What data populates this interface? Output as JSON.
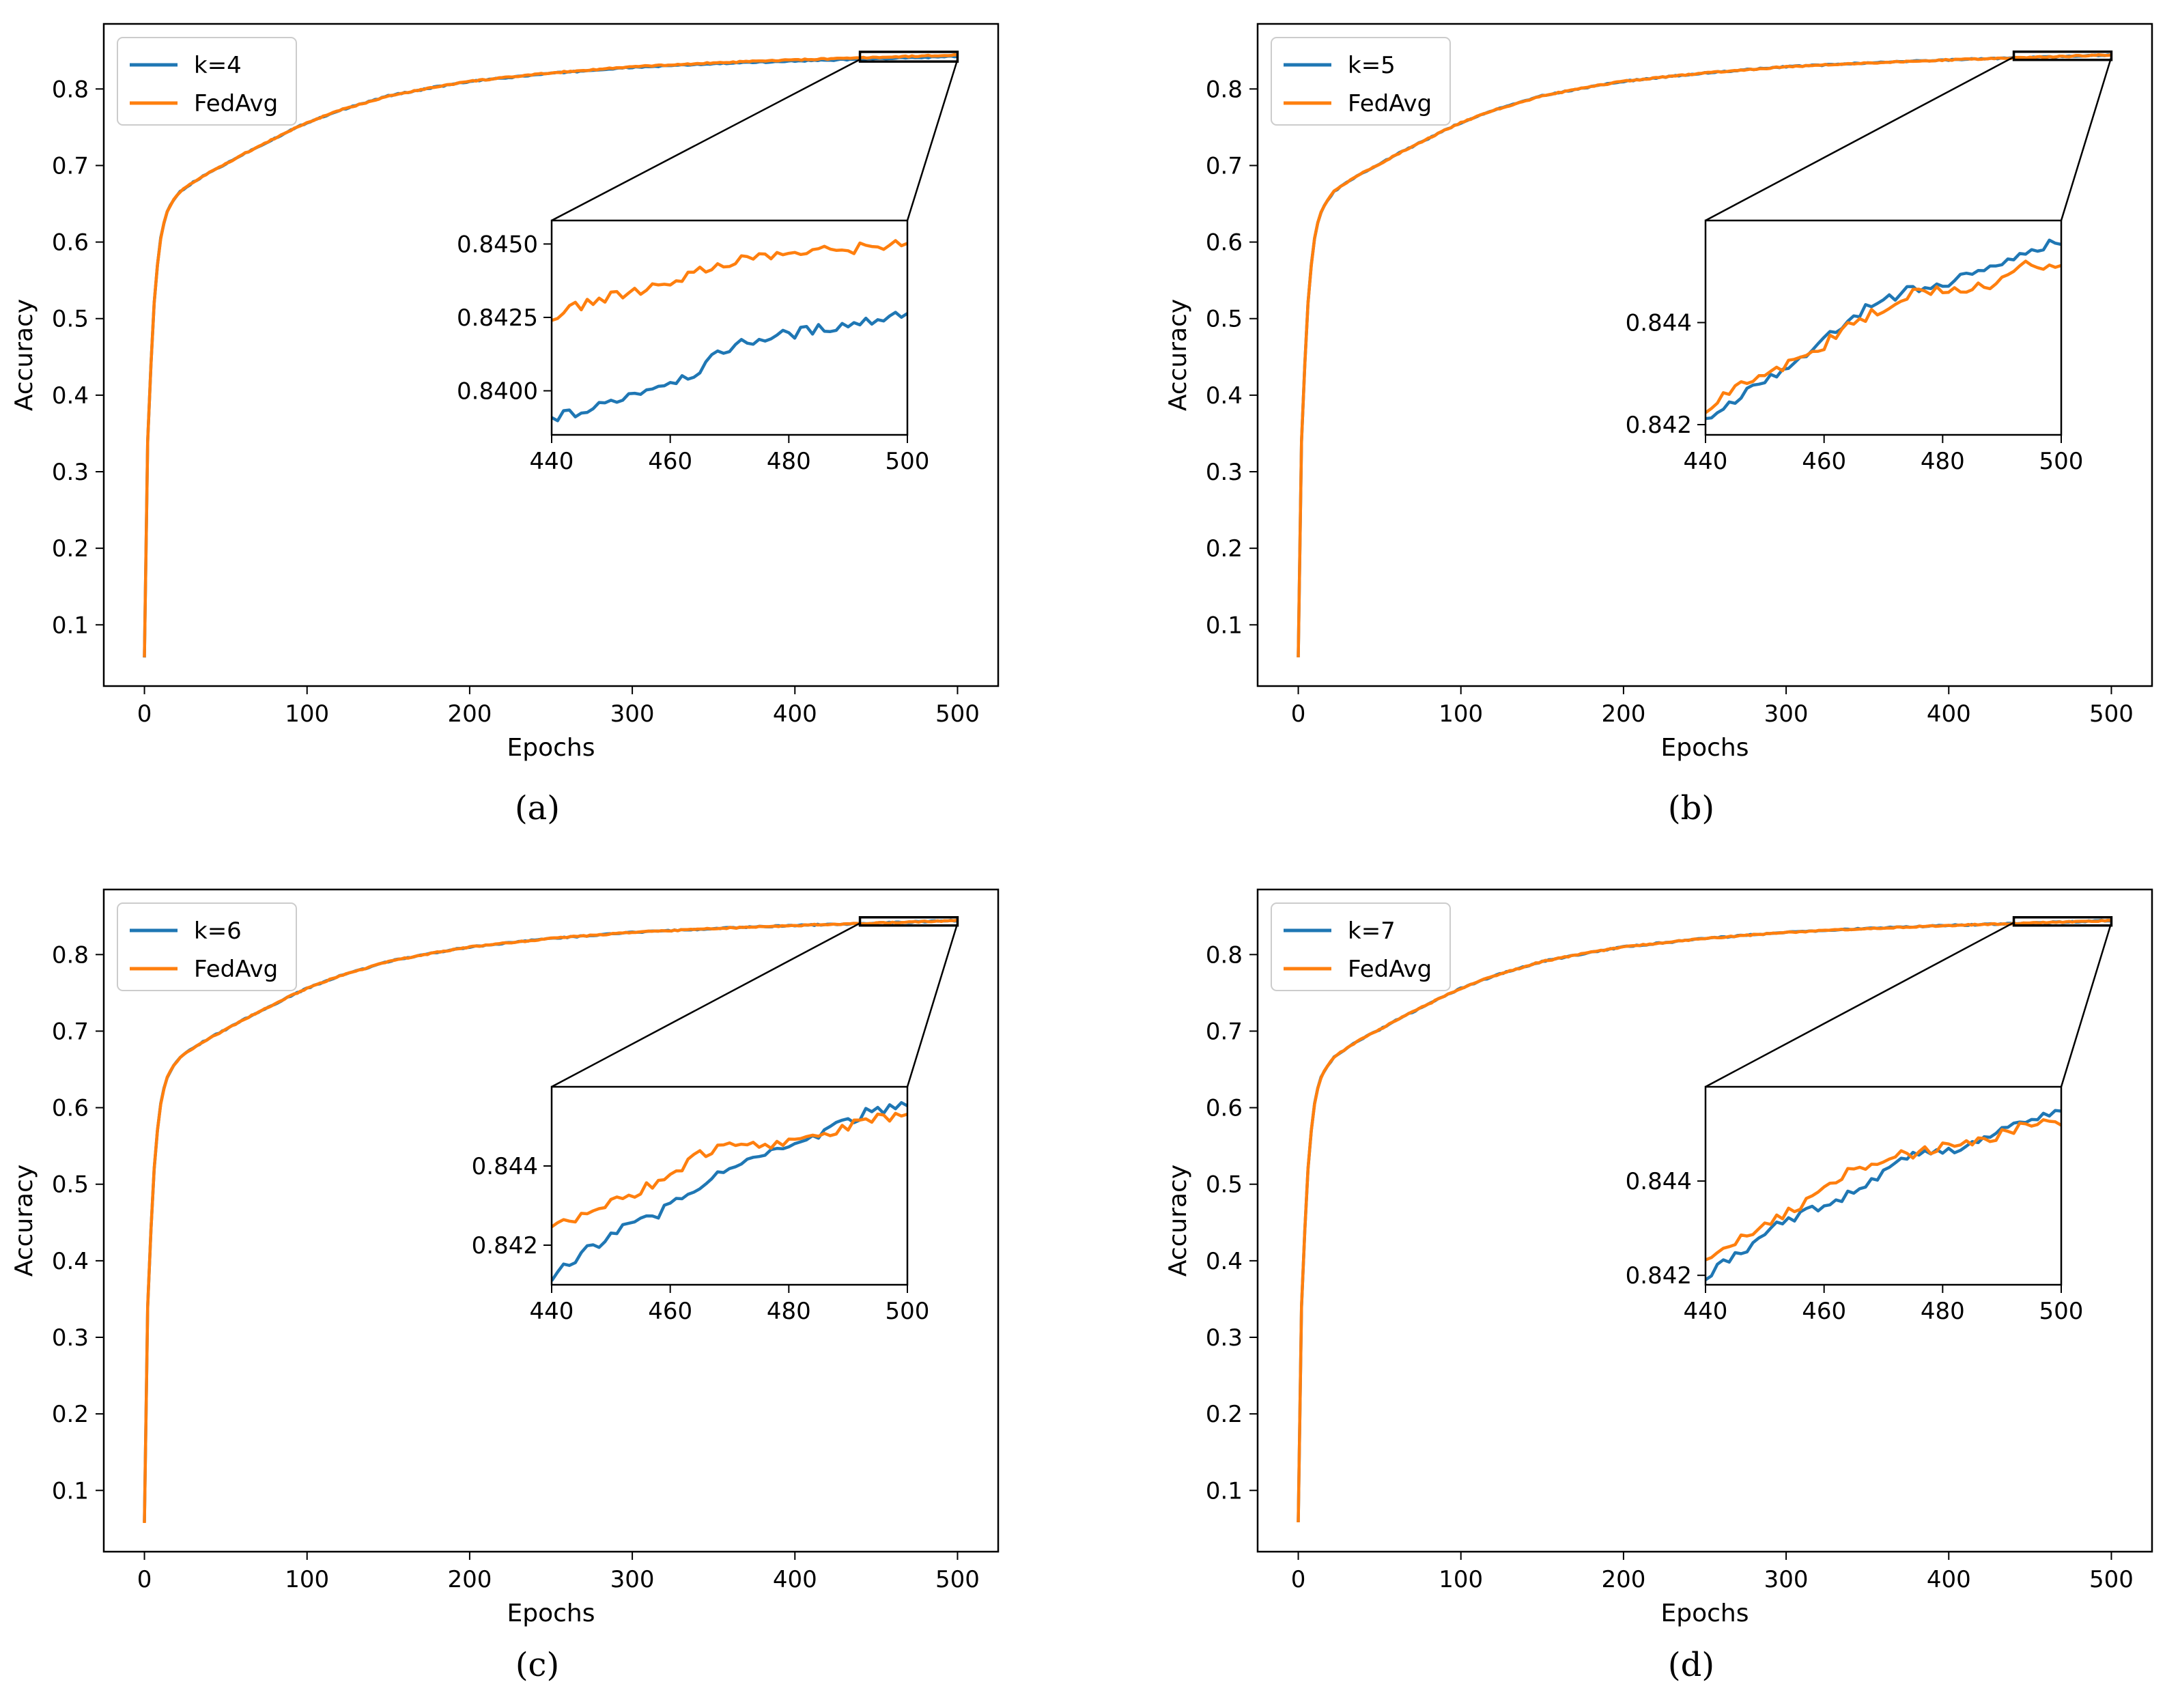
{
  "figure": {
    "series_colors": {
      "k": "#1f77b4",
      "fedavg": "#ff7f0e"
    }
  },
  "chart_data": [
    {
      "type": "line",
      "panel": "a",
      "caption": "(a)",
      "xlabel": "Epochs",
      "ylabel": "Accuracy",
      "xlim": [
        -25,
        525
      ],
      "ylim": [
        0.02,
        0.885
      ],
      "xticks": [
        0,
        100,
        200,
        300,
        400,
        500
      ],
      "yticks": [
        0.1,
        0.2,
        0.3,
        0.4,
        0.5,
        0.6,
        0.7,
        0.8
      ],
      "legend": [
        "k=4",
        "FedAvg"
      ],
      "legend_position": "top-left",
      "curve_points": [
        [
          0,
          0.058
        ],
        [
          1,
          0.23
        ],
        [
          2,
          0.34
        ],
        [
          4,
          0.44
        ],
        [
          6,
          0.52
        ],
        [
          8,
          0.57
        ],
        [
          10,
          0.605
        ],
        [
          13,
          0.635
        ],
        [
          17,
          0.652
        ],
        [
          22,
          0.666
        ],
        [
          30,
          0.678
        ],
        [
          40,
          0.691
        ],
        [
          50,
          0.702
        ],
        [
          60,
          0.714
        ],
        [
          75,
          0.73
        ],
        [
          90,
          0.746
        ],
        [
          100,
          0.756
        ],
        [
          120,
          0.772
        ],
        [
          150,
          0.791
        ],
        [
          180,
          0.803
        ],
        [
          200,
          0.81
        ],
        [
          250,
          0.821
        ],
        [
          300,
          0.829
        ],
        [
          350,
          0.834
        ],
        [
          400,
          0.838
        ],
        [
          440,
          0.8405
        ],
        [
          500,
          0.8445
        ]
      ],
      "series": [
        {
          "name": "k=4",
          "final_gap": -0.002
        },
        {
          "name": "FedAvg",
          "final_gap": 0
        }
      ],
      "inset": {
        "xlim": [
          440,
          500
        ],
        "ylim": [
          0.8385,
          0.8458
        ],
        "xticks": [
          440,
          460,
          480,
          500
        ],
        "yticks": [
          0.84,
          0.8425,
          0.845
        ],
        "ytick_labels": [
          "0.8400",
          "0.8425",
          "0.8450"
        ],
        "series": [
          {
            "name": "k=4",
            "x": [
              440,
              446,
              452,
              458,
              464,
              470,
              476,
              482,
              488,
              494,
              500
            ],
            "y": [
              0.8391,
              0.8393,
              0.8398,
              0.8402,
              0.8406,
              0.8415,
              0.8418,
              0.842,
              0.8422,
              0.8424,
              0.8427
            ]
          },
          {
            "name": "FedAvg",
            "x": [
              440,
              446,
              452,
              458,
              464,
              470,
              476,
              482,
              488,
              494,
              500
            ],
            "y": [
              0.8425,
              0.843,
              0.8433,
              0.8436,
              0.844,
              0.8444,
              0.8446,
              0.8447,
              0.8448,
              0.8449,
              0.8451
            ]
          }
        ]
      }
    },
    {
      "type": "line",
      "panel": "b",
      "caption": "(b)",
      "xlabel": "Epochs",
      "ylabel": "Accuracy",
      "xlim": [
        -25,
        525
      ],
      "ylim": [
        0.02,
        0.885
      ],
      "xticks": [
        0,
        100,
        200,
        300,
        400,
        500
      ],
      "yticks": [
        0.1,
        0.2,
        0.3,
        0.4,
        0.5,
        0.6,
        0.7,
        0.8
      ],
      "legend": [
        "k=5",
        "FedAvg"
      ],
      "legend_position": "top-left",
      "curve_points": [
        [
          0,
          0.058
        ],
        [
          1,
          0.23
        ],
        [
          2,
          0.34
        ],
        [
          4,
          0.44
        ],
        [
          6,
          0.52
        ],
        [
          8,
          0.57
        ],
        [
          10,
          0.605
        ],
        [
          13,
          0.635
        ],
        [
          17,
          0.652
        ],
        [
          22,
          0.666
        ],
        [
          30,
          0.678
        ],
        [
          40,
          0.691
        ],
        [
          50,
          0.702
        ],
        [
          60,
          0.714
        ],
        [
          75,
          0.73
        ],
        [
          90,
          0.746
        ],
        [
          100,
          0.756
        ],
        [
          120,
          0.772
        ],
        [
          150,
          0.791
        ],
        [
          180,
          0.803
        ],
        [
          200,
          0.81
        ],
        [
          250,
          0.821
        ],
        [
          300,
          0.829
        ],
        [
          350,
          0.834
        ],
        [
          400,
          0.838
        ],
        [
          440,
          0.8405
        ],
        [
          500,
          0.8445
        ]
      ],
      "series": [
        {
          "name": "k=5",
          "final_gap": 0
        },
        {
          "name": "FedAvg",
          "final_gap": 0
        }
      ],
      "inset": {
        "xlim": [
          440,
          500
        ],
        "ylim": [
          0.8418,
          0.846
        ],
        "xticks": [
          440,
          460,
          480,
          500
        ],
        "yticks": [
          0.842,
          0.844
        ],
        "ytick_labels": [
          "0.842",
          "0.844"
        ],
        "series": [
          {
            "name": "k=5",
            "x": [
              440,
              446,
              452,
              458,
              464,
              470,
              476,
              482,
              488,
              494,
              500
            ],
            "y": [
              0.8421,
              0.8426,
              0.843,
              0.8434,
              0.8441,
              0.8444,
              0.8447,
              0.8448,
              0.8451,
              0.8454,
              0.8456
            ]
          },
          {
            "name": "FedAvg",
            "x": [
              440,
              446,
              452,
              458,
              464,
              470,
              476,
              482,
              488,
              494,
              500
            ],
            "y": [
              0.8423,
              0.8428,
              0.8431,
              0.8434,
              0.8439,
              0.8443,
              0.8446,
              0.8447,
              0.8447,
              0.8451,
              0.8452
            ]
          }
        ]
      }
    },
    {
      "type": "line",
      "panel": "c",
      "caption": "(c)",
      "xlabel": "Epochs",
      "ylabel": "Accuracy",
      "xlim": [
        -25,
        525
      ],
      "ylim": [
        0.02,
        0.885
      ],
      "xticks": [
        0,
        100,
        200,
        300,
        400,
        500
      ],
      "yticks": [
        0.1,
        0.2,
        0.3,
        0.4,
        0.5,
        0.6,
        0.7,
        0.8
      ],
      "legend": [
        "k=6",
        "FedAvg"
      ],
      "legend_position": "top-left",
      "curve_points": [
        [
          0,
          0.058
        ],
        [
          1,
          0.23
        ],
        [
          2,
          0.34
        ],
        [
          4,
          0.44
        ],
        [
          6,
          0.52
        ],
        [
          8,
          0.57
        ],
        [
          10,
          0.605
        ],
        [
          13,
          0.635
        ],
        [
          17,
          0.652
        ],
        [
          22,
          0.666
        ],
        [
          30,
          0.678
        ],
        [
          40,
          0.691
        ],
        [
          50,
          0.702
        ],
        [
          60,
          0.714
        ],
        [
          75,
          0.73
        ],
        [
          90,
          0.746
        ],
        [
          100,
          0.756
        ],
        [
          120,
          0.772
        ],
        [
          150,
          0.791
        ],
        [
          180,
          0.803
        ],
        [
          200,
          0.81
        ],
        [
          250,
          0.821
        ],
        [
          300,
          0.829
        ],
        [
          350,
          0.834
        ],
        [
          400,
          0.838
        ],
        [
          440,
          0.8405
        ],
        [
          500,
          0.8445
        ]
      ],
      "series": [
        {
          "name": "k=6",
          "final_gap": 0
        },
        {
          "name": "FedAvg",
          "final_gap": 0
        }
      ],
      "inset": {
        "xlim": [
          440,
          500
        ],
        "ylim": [
          0.841,
          0.846
        ],
        "xticks": [
          440,
          460,
          480,
          500
        ],
        "yticks": [
          0.842,
          0.844
        ],
        "ytick_labels": [
          "0.842",
          "0.844"
        ],
        "series": [
          {
            "name": "k=6",
            "x": [
              440,
              446,
              452,
              458,
              464,
              470,
              476,
              482,
              488,
              494,
              500
            ],
            "y": [
              0.8412,
              0.8419,
              0.8424,
              0.8428,
              0.8434,
              0.844,
              0.8443,
              0.8446,
              0.845,
              0.8454,
              0.8455
            ]
          },
          {
            "name": "FedAvg",
            "x": [
              440,
              446,
              452,
              458,
              464,
              470,
              476,
              482,
              488,
              494,
              500
            ],
            "y": [
              0.8424,
              0.8428,
              0.8432,
              0.8436,
              0.8442,
              0.8446,
              0.8445,
              0.8447,
              0.8449,
              0.8452,
              0.8453
            ]
          }
        ]
      }
    },
    {
      "type": "line",
      "panel": "d",
      "caption": "(d)",
      "xlabel": "Epochs",
      "ylabel": "Accuracy",
      "xlim": [
        -25,
        525
      ],
      "ylim": [
        0.02,
        0.885
      ],
      "xticks": [
        0,
        100,
        200,
        300,
        400,
        500
      ],
      "yticks": [
        0.1,
        0.2,
        0.3,
        0.4,
        0.5,
        0.6,
        0.7,
        0.8
      ],
      "legend": [
        "k=7",
        "FedAvg"
      ],
      "legend_position": "top-left",
      "curve_points": [
        [
          0,
          0.058
        ],
        [
          1,
          0.23
        ],
        [
          2,
          0.34
        ],
        [
          4,
          0.44
        ],
        [
          6,
          0.52
        ],
        [
          8,
          0.57
        ],
        [
          10,
          0.605
        ],
        [
          13,
          0.635
        ],
        [
          17,
          0.652
        ],
        [
          22,
          0.666
        ],
        [
          30,
          0.678
        ],
        [
          40,
          0.691
        ],
        [
          50,
          0.702
        ],
        [
          60,
          0.714
        ],
        [
          75,
          0.73
        ],
        [
          90,
          0.746
        ],
        [
          100,
          0.756
        ],
        [
          120,
          0.772
        ],
        [
          150,
          0.791
        ],
        [
          180,
          0.803
        ],
        [
          200,
          0.81
        ],
        [
          250,
          0.821
        ],
        [
          300,
          0.829
        ],
        [
          350,
          0.834
        ],
        [
          400,
          0.838
        ],
        [
          440,
          0.8405
        ],
        [
          500,
          0.8445
        ]
      ],
      "series": [
        {
          "name": "k=7",
          "final_gap": 0
        },
        {
          "name": "FedAvg",
          "final_gap": 0
        }
      ],
      "inset": {
        "xlim": [
          440,
          500
        ],
        "ylim": [
          0.8418,
          0.846
        ],
        "xticks": [
          440,
          460,
          480,
          500
        ],
        "yticks": [
          0.842,
          0.844
        ],
        "ytick_labels": [
          "0.842",
          "0.844"
        ],
        "series": [
          {
            "name": "k=7",
            "x": [
              440,
              446,
              452,
              458,
              464,
              470,
              476,
              482,
              488,
              494,
              500
            ],
            "y": [
              0.842,
              0.8425,
              0.8431,
              0.8434,
              0.8437,
              0.8442,
              0.8446,
              0.8447,
              0.845,
              0.8453,
              0.8455
            ]
          },
          {
            "name": "FedAvg",
            "x": [
              440,
              446,
              452,
              458,
              464,
              470,
              476,
              482,
              488,
              494,
              500
            ],
            "y": [
              0.8424,
              0.8428,
              0.8432,
              0.8436,
              0.8442,
              0.8445,
              0.8446,
              0.8448,
              0.8449,
              0.8452,
              0.8452
            ]
          }
        ]
      }
    }
  ]
}
